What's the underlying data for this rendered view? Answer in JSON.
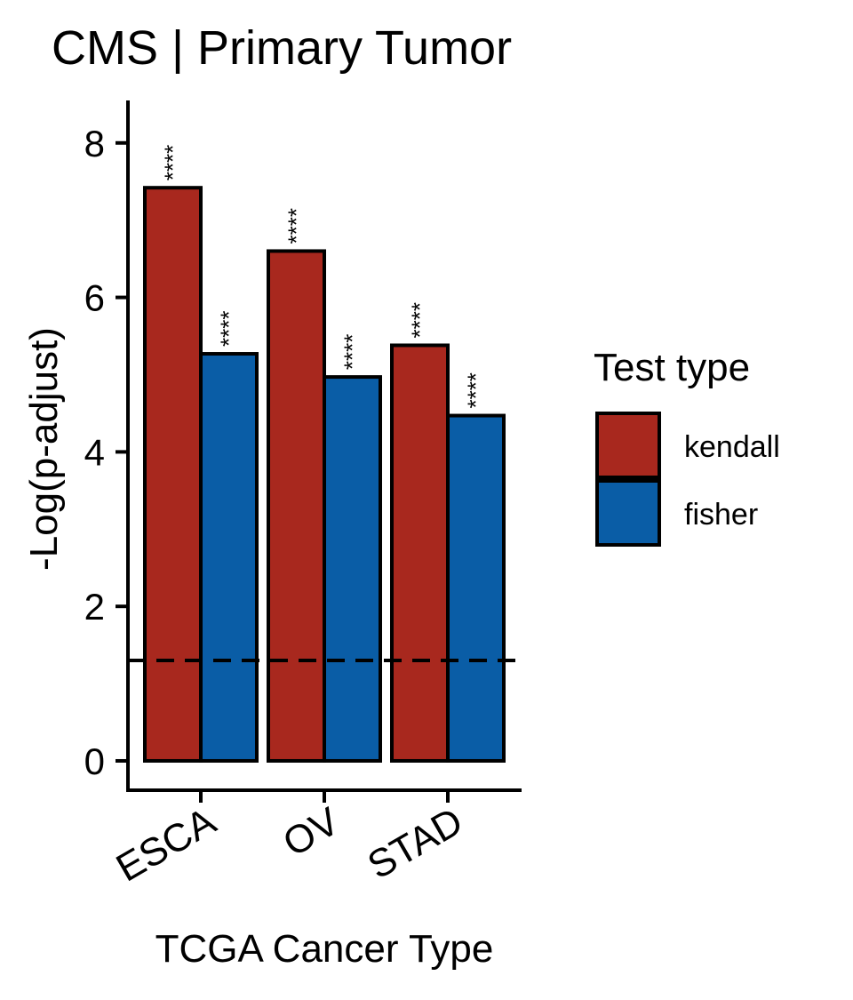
{
  "chart_data": {
    "type": "bar",
    "title": "CMS | Primary Tumor",
    "xlabel": "TCGA Cancer Type",
    "ylabel": "-Log(p-adjust)",
    "categories": [
      "ESCA",
      "OV",
      "STAD"
    ],
    "series": [
      {
        "name": "kendall",
        "color": "#A8281E",
        "values": [
          7.42,
          6.6,
          5.38
        ],
        "labels": [
          "****",
          "****",
          "****"
        ]
      },
      {
        "name": "fisher",
        "color": "#0A5DA6",
        "values": [
          5.27,
          4.97,
          4.47
        ],
        "labels": [
          "****",
          "****",
          "****"
        ]
      }
    ],
    "yticks": [
      0,
      2,
      4,
      6,
      8
    ],
    "ylim": [
      -0.38,
      8.55
    ],
    "reference_line": {
      "y": 1.3,
      "style": "dashed"
    },
    "legend": {
      "title": "Test type",
      "placement": "right"
    },
    "grid": false
  }
}
